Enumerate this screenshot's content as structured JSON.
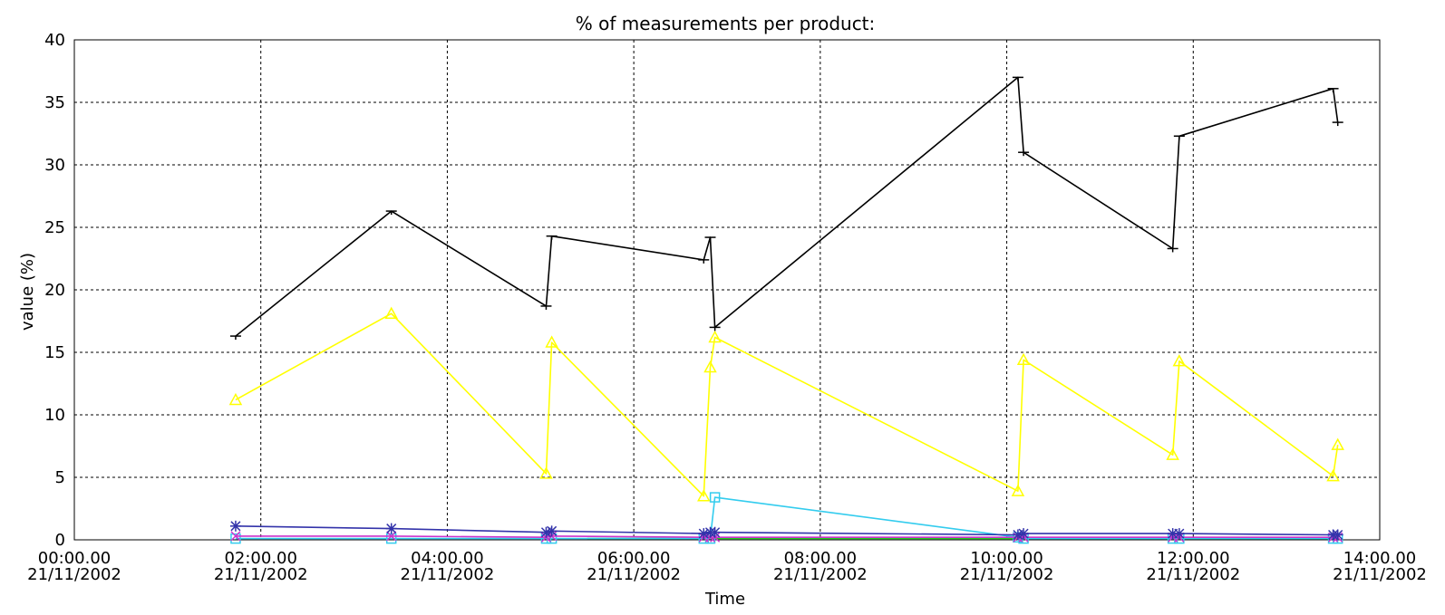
{
  "chart_data": {
    "type": "line",
    "title": "% of measurements per product:",
    "xlabel": "Time",
    "ylabel": "value (%)",
    "ylim": [
      0,
      40
    ],
    "xlim_hours": [
      0,
      14
    ],
    "grid": true,
    "legend": "none",
    "x_ticks": [
      {
        "value": 0,
        "time": "00:00.00",
        "date": "21/11/2002"
      },
      {
        "value": 2,
        "time": "02:00.00",
        "date": "21/11/2002"
      },
      {
        "value": 4,
        "time": "04:00.00",
        "date": "21/11/2002"
      },
      {
        "value": 6,
        "time": "06:00.00",
        "date": "21/11/2002"
      },
      {
        "value": 8,
        "time": "08:00.00",
        "date": "21/11/2002"
      },
      {
        "value": 10,
        "time": "10:00.00",
        "date": "21/11/2002"
      },
      {
        "value": 12,
        "time": "12:00.00",
        "date": "21/11/2002"
      },
      {
        "value": 14,
        "time": "14:00.00",
        "date": "21/11/2002"
      }
    ],
    "y_ticks": [
      0,
      5,
      10,
      15,
      20,
      25,
      30,
      35,
      40
    ],
    "series": [
      {
        "color": "#000000",
        "marker": "tbar",
        "points": [
          [
            1.73,
            16.3
          ],
          [
            3.4,
            26.3
          ],
          [
            5.06,
            18.7
          ],
          [
            5.12,
            24.3
          ],
          [
            6.75,
            22.4
          ],
          [
            6.82,
            24.2
          ],
          [
            6.87,
            17.0
          ],
          [
            10.12,
            37.0
          ],
          [
            10.18,
            31.0
          ],
          [
            11.78,
            23.3
          ],
          [
            11.85,
            32.3
          ],
          [
            13.5,
            36.1
          ],
          [
            13.55,
            33.4
          ]
        ]
      },
      {
        "color": "#ffff00",
        "marker": "triangle",
        "points": [
          [
            1.73,
            11.2
          ],
          [
            3.4,
            18.1
          ],
          [
            5.06,
            5.3
          ],
          [
            5.12,
            15.8
          ],
          [
            6.75,
            3.5
          ],
          [
            6.82,
            13.8
          ],
          [
            6.87,
            16.2
          ],
          [
            10.12,
            3.9
          ],
          [
            10.18,
            14.4
          ],
          [
            11.78,
            6.8
          ],
          [
            11.85,
            14.3
          ],
          [
            13.5,
            5.1
          ],
          [
            13.55,
            7.6
          ]
        ]
      },
      {
        "color": "#33ccee",
        "marker": "square",
        "points": [
          [
            1.73,
            0.1
          ],
          [
            3.4,
            0.1
          ],
          [
            5.06,
            0.1
          ],
          [
            5.12,
            0.1
          ],
          [
            6.75,
            0.1
          ],
          [
            6.82,
            0.1
          ],
          [
            6.87,
            3.4
          ],
          [
            10.12,
            0.2
          ],
          [
            10.18,
            0.1
          ],
          [
            11.78,
            0.1
          ],
          [
            11.85,
            0.1
          ],
          [
            13.5,
            0.1
          ],
          [
            13.55,
            0.1
          ]
        ]
      },
      {
        "color": "#3333aa",
        "marker": "star",
        "points": [
          [
            1.73,
            1.1
          ],
          [
            3.4,
            0.9
          ],
          [
            5.06,
            0.6
          ],
          [
            5.12,
            0.7
          ],
          [
            6.75,
            0.5
          ],
          [
            6.82,
            0.6
          ],
          [
            6.87,
            0.6
          ],
          [
            10.12,
            0.4
          ],
          [
            10.18,
            0.5
          ],
          [
            11.78,
            0.5
          ],
          [
            11.85,
            0.5
          ],
          [
            13.5,
            0.4
          ],
          [
            13.55,
            0.4
          ]
        ]
      },
      {
        "color": "#cc33cc",
        "marker": "x",
        "points": [
          [
            1.73,
            0.3
          ],
          [
            3.4,
            0.3
          ],
          [
            5.06,
            0.2
          ],
          [
            5.12,
            0.3
          ],
          [
            6.75,
            0.2
          ],
          [
            6.82,
            0.2
          ],
          [
            6.87,
            0.2
          ],
          [
            10.12,
            0.2
          ],
          [
            10.18,
            0.2
          ],
          [
            11.78,
            0.2
          ],
          [
            11.85,
            0.2
          ],
          [
            13.5,
            0.2
          ],
          [
            13.55,
            0.2
          ]
        ]
      },
      {
        "color": "#22cc22",
        "marker": "none",
        "points": [
          [
            5.5,
            0.1
          ],
          [
            6.75,
            0.1
          ],
          [
            10.12,
            0.1
          ],
          [
            11.78,
            0.1
          ],
          [
            13.55,
            0.1
          ]
        ]
      }
    ]
  }
}
